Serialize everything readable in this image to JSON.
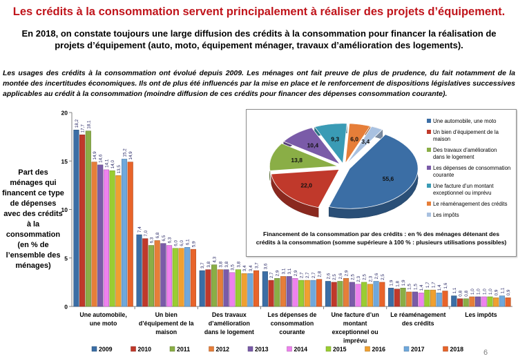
{
  "title": "Les crédits à la consommation servent principalement à réaliser des projets d’équipement.",
  "subtitle": "En 2018, on constate toujours une large diffusion des crédits à la consommation pour financer la réalisation de projets d’équipement (auto, moto, équipement ménager, travaux d’amélioration des logements).",
  "intro": "Les usages des crédits à la consommation ont évolué depuis 2009. Les ménages ont fait preuve de plus de prudence, du fait notamment de la montée des incertitudes économiques. Ils ont de plus été influencés par la mise en place et le renforcement de dispositions législatives successives applicables au crédit à la consommation (moindre diffusion de ces crédits pour financer des dépenses consommation courante).",
  "page_number": "6",
  "chart_data": [
    {
      "type": "bar",
      "ylabel": "Part des ménages qui financent ce type de dépenses avec des crédits à la consommation (en % de l’ensemble des ménages)",
      "ylim": [
        0,
        20
      ],
      "yticks": [
        0,
        5,
        10,
        15,
        20
      ],
      "grid": false,
      "legend_position": "bottom",
      "categories": [
        "Une automobile, une moto",
        "Un bien d’équipement de la maison",
        "Des travaux d’amélioration dans le logement",
        "Les dépenses de consommation courante",
        "Une facture d’un montant exceptionnel ou imprévu",
        "Le réaménagement des crédits",
        "Les impôts"
      ],
      "series": [
        {
          "name": "2009",
          "color": "#3b6ea5",
          "values": [
            18.2,
            7.4,
            3.7,
            3.6,
            2.6,
            1.9,
            1.1
          ]
        },
        {
          "name": "2010",
          "color": "#c0392b",
          "values": [
            17.7,
            7.0,
            3.8,
            2.7,
            2.5,
            1.8,
            0.8
          ]
        },
        {
          "name": "2011",
          "color": "#8aae46",
          "values": [
            18.1,
            6.3,
            4.3,
            2.9,
            2.6,
            1.9,
            0.8
          ]
        },
        {
          "name": "2012",
          "color": "#e67e39",
          "values": [
            14.9,
            6.8,
            3.8,
            3.1,
            2.9,
            1.5,
            1.0
          ]
        },
        {
          "name": "2013",
          "color": "#7a5ba8",
          "values": [
            14.6,
            6.5,
            3.8,
            3.1,
            2.5,
            1.5,
            1.0
          ]
        },
        {
          "name": "2014",
          "color": "#ee82ee",
          "values": [
            14.1,
            6.3,
            3.5,
            2.9,
            2.3,
            1.4,
            1.0
          ]
        },
        {
          "name": "2015",
          "color": "#9acd32",
          "values": [
            14.0,
            6.0,
            3.8,
            2.7,
            2.5,
            1.7,
            1.0
          ]
        },
        {
          "name": "2016",
          "color": "#f0a030",
          "values": [
            13.5,
            6.0,
            3.4,
            2.7,
            2.3,
            1.7,
            0.9
          ]
        },
        {
          "name": "2017",
          "color": "#6fa8dc",
          "values": [
            15.2,
            6.1,
            3.4,
            2.7,
            2.6,
            1.4,
            1.1
          ]
        },
        {
          "name": "2018",
          "color": "#e8642a",
          "values": [
            14.9,
            5.9,
            3.7,
            2.8,
            2.5,
            1.6,
            0.9
          ]
        }
      ]
    },
    {
      "type": "pie",
      "title": "Financement de la consommation par des crédits : en % des ménages détenant des crédits à la consommation (somme supérieure à 100 % : plusieurs utilisations possibles)",
      "legend_position": "right",
      "slices": [
        {
          "label": "Une automobile, une moto",
          "value": 55.6,
          "color": "#3b6ea5"
        },
        {
          "label": "Un bien d’équipement de la maison",
          "value": 22.0,
          "color": "#c0392b"
        },
        {
          "label": "Des travaux d’amélioration dans le logement",
          "value": 13.8,
          "color": "#8aae46"
        },
        {
          "label": "Les dépenses de consommation courante",
          "value": 10.4,
          "color": "#7a5ba8"
        },
        {
          "label": "Une facture d’un montant exceptionnel ou imprévu",
          "value": 9.3,
          "color": "#3a9bb5"
        },
        {
          "label": "Le réaménagement des crédits",
          "value": 6.0,
          "color": "#e67e39"
        },
        {
          "label": "Les impôts",
          "value": 3.4,
          "color": "#a9c1e0"
        }
      ]
    }
  ]
}
